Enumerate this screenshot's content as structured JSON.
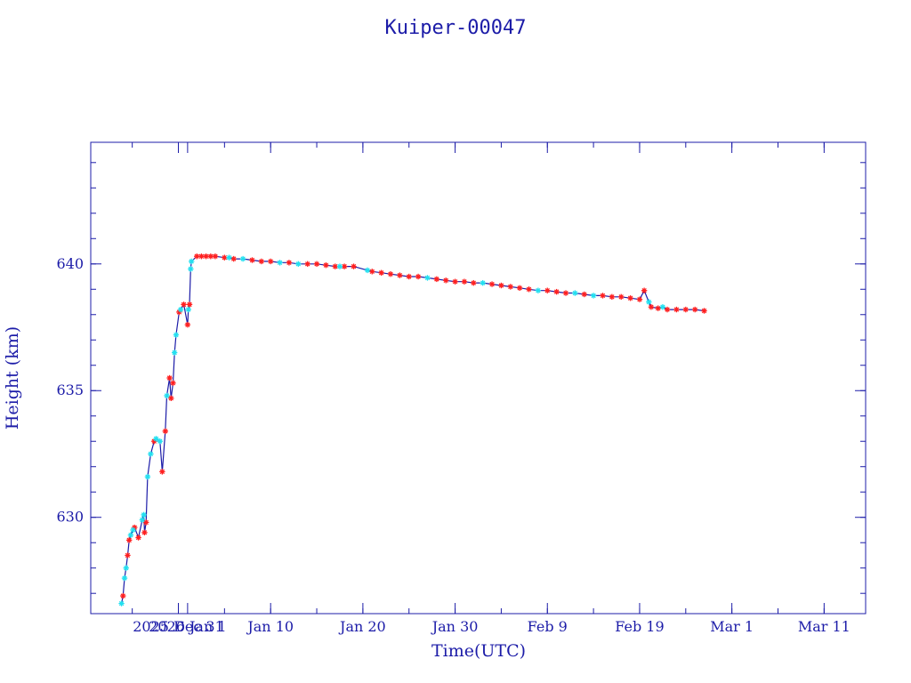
{
  "chart_data": {
    "type": "scatter",
    "title": "Kuiper-00047",
    "xlabel": "Time(UTC)",
    "ylabel": "Height (km)",
    "x_unit": "date (UTC)",
    "xlim": [
      "2025-12-21T12:00",
      "2026-03-15T12:00"
    ],
    "ylim": [
      626.2,
      644.8
    ],
    "x_ticks": [
      {
        "date": "2025-12-31",
        "label": "2025 Dec 31"
      },
      {
        "date": "2026-01-01",
        "label": "2026 Jan 1"
      },
      {
        "date": "2026-01-10",
        "label": "Jan 10"
      },
      {
        "date": "2026-01-20",
        "label": "Jan 20"
      },
      {
        "date": "2026-01-30",
        "label": "Jan 30"
      },
      {
        "date": "2026-02-09",
        "label": "Feb  9"
      },
      {
        "date": "2026-02-19",
        "label": "Feb 19"
      },
      {
        "date": "2026-03-01",
        "label": "Mar  1"
      },
      {
        "date": "2026-03-11",
        "label": "Mar 11"
      }
    ],
    "y_ticks": [
      {
        "value": 630,
        "label": "630"
      },
      {
        "value": 635,
        "label": "635"
      },
      {
        "value": 640,
        "label": "640"
      }
    ],
    "grid": false,
    "series": [
      {
        "color": "#ff2020",
        "marker": "asterisk",
        "points": [
          [
            "2025-12-25T00:00",
            626.9
          ],
          [
            "2025-12-25T12:00",
            628.5
          ],
          [
            "2025-12-25T16:00",
            629.1
          ],
          [
            "2025-12-26T06:00",
            629.6
          ],
          [
            "2025-12-26T16:00",
            629.2
          ],
          [
            "2025-12-27T08:00",
            629.4
          ],
          [
            "2025-12-27T12:00",
            629.8
          ],
          [
            "2025-12-28T09:00",
            633.0
          ],
          [
            "2025-12-29T06:00",
            631.8
          ],
          [
            "2025-12-29T14:00",
            633.4
          ],
          [
            "2025-12-30T01:00",
            635.5
          ],
          [
            "2025-12-30T05:00",
            634.7
          ],
          [
            "2025-12-30T10:00",
            635.3
          ],
          [
            "2025-12-31T02:00",
            638.1
          ],
          [
            "2025-12-31T14:00",
            638.4
          ],
          [
            "2026-01-01T00:00",
            637.6
          ],
          [
            "2026-01-01T05:00",
            638.4
          ],
          [
            "2026-01-02T00:00",
            640.3
          ],
          [
            "2026-01-02T12:00",
            640.3
          ],
          [
            "2026-01-03T00:00",
            640.3
          ],
          [
            "2026-01-03T12:00",
            640.3
          ],
          [
            "2026-01-04T00:00",
            640.3
          ],
          [
            "2026-01-05T00:00",
            640.25
          ],
          [
            "2026-01-06T00:00",
            640.2
          ],
          [
            "2026-01-08T00:00",
            640.15
          ],
          [
            "2026-01-09T00:00",
            640.1
          ],
          [
            "2026-01-10T00:00",
            640.1
          ],
          [
            "2026-01-12T00:00",
            640.05
          ],
          [
            "2026-01-14T00:00",
            640.0
          ],
          [
            "2026-01-15T00:00",
            640.0
          ],
          [
            "2026-01-16T00:00",
            639.95
          ],
          [
            "2026-01-17T00:00",
            639.9
          ],
          [
            "2026-01-18T00:00",
            639.9
          ],
          [
            "2026-01-19T00:00",
            639.9
          ],
          [
            "2026-01-21T00:00",
            639.7
          ],
          [
            "2026-01-22T00:00",
            639.65
          ],
          [
            "2026-01-23T00:00",
            639.6
          ],
          [
            "2026-01-24T00:00",
            639.55
          ],
          [
            "2026-01-25T00:00",
            639.5
          ],
          [
            "2026-01-26T00:00",
            639.5
          ],
          [
            "2026-01-28T00:00",
            639.4
          ],
          [
            "2026-01-29T00:00",
            639.35
          ],
          [
            "2026-01-30T00:00",
            639.3
          ],
          [
            "2026-01-31T00:00",
            639.3
          ],
          [
            "2026-02-01T00:00",
            639.25
          ],
          [
            "2026-02-03T00:00",
            639.2
          ],
          [
            "2026-02-04T00:00",
            639.15
          ],
          [
            "2026-02-05T00:00",
            639.1
          ],
          [
            "2026-02-06T00:00",
            639.05
          ],
          [
            "2026-02-07T00:00",
            639.0
          ],
          [
            "2026-02-09T00:00",
            638.95
          ],
          [
            "2026-02-10T00:00",
            638.9
          ],
          [
            "2026-02-11T00:00",
            638.85
          ],
          [
            "2026-02-13T00:00",
            638.8
          ],
          [
            "2026-02-15T00:00",
            638.75
          ],
          [
            "2026-02-16T00:00",
            638.7
          ],
          [
            "2026-02-17T00:00",
            638.7
          ],
          [
            "2026-02-18T00:00",
            638.65
          ],
          [
            "2026-02-19T00:00",
            638.6
          ],
          [
            "2026-02-19T12:00",
            638.95
          ],
          [
            "2026-02-20T06:00",
            638.3
          ],
          [
            "2026-02-21T00:00",
            638.25
          ],
          [
            "2026-02-22T00:00",
            638.2
          ],
          [
            "2026-02-23T00:00",
            638.2
          ],
          [
            "2026-02-24T00:00",
            638.2
          ],
          [
            "2026-02-25T00:00",
            638.2
          ],
          [
            "2026-02-26T00:00",
            638.15
          ]
        ]
      },
      {
        "color": "#22e0f0",
        "marker": "asterisk",
        "points": [
          [
            "2025-12-24T20:00",
            626.6
          ],
          [
            "2025-12-25T04:00",
            627.6
          ],
          [
            "2025-12-25T08:00",
            628.0
          ],
          [
            "2025-12-25T20:00",
            629.3
          ],
          [
            "2025-12-26T02:00",
            629.5
          ],
          [
            "2025-12-27T02:00",
            629.9
          ],
          [
            "2025-12-27T06:00",
            630.1
          ],
          [
            "2025-12-27T16:00",
            631.6
          ],
          [
            "2025-12-28T00:00",
            632.5
          ],
          [
            "2025-12-28T14:00",
            633.1
          ],
          [
            "2025-12-29T00:00",
            633.0
          ],
          [
            "2025-12-29T18:00",
            634.8
          ],
          [
            "2025-12-30T14:00",
            636.5
          ],
          [
            "2025-12-30T18:00",
            637.2
          ],
          [
            "2025-12-31T06:00",
            638.2
          ],
          [
            "2026-01-01T02:00",
            638.2
          ],
          [
            "2026-01-01T08:00",
            639.8
          ],
          [
            "2026-01-01T10:00",
            640.1
          ],
          [
            "2026-01-05T12:00",
            640.25
          ],
          [
            "2026-01-07T00:00",
            640.2
          ],
          [
            "2026-01-11T00:00",
            640.05
          ],
          [
            "2026-01-13T00:00",
            640.0
          ],
          [
            "2026-01-17T12:00",
            639.9
          ],
          [
            "2026-01-20T12:00",
            639.75
          ],
          [
            "2026-01-27T00:00",
            639.45
          ],
          [
            "2026-02-02T00:00",
            639.25
          ],
          [
            "2026-02-08T00:00",
            638.95
          ],
          [
            "2026-02-12T00:00",
            638.85
          ],
          [
            "2026-02-14T00:00",
            638.75
          ],
          [
            "2026-02-20T00:00",
            638.5
          ],
          [
            "2026-02-21T12:00",
            638.3
          ]
        ]
      }
    ]
  }
}
